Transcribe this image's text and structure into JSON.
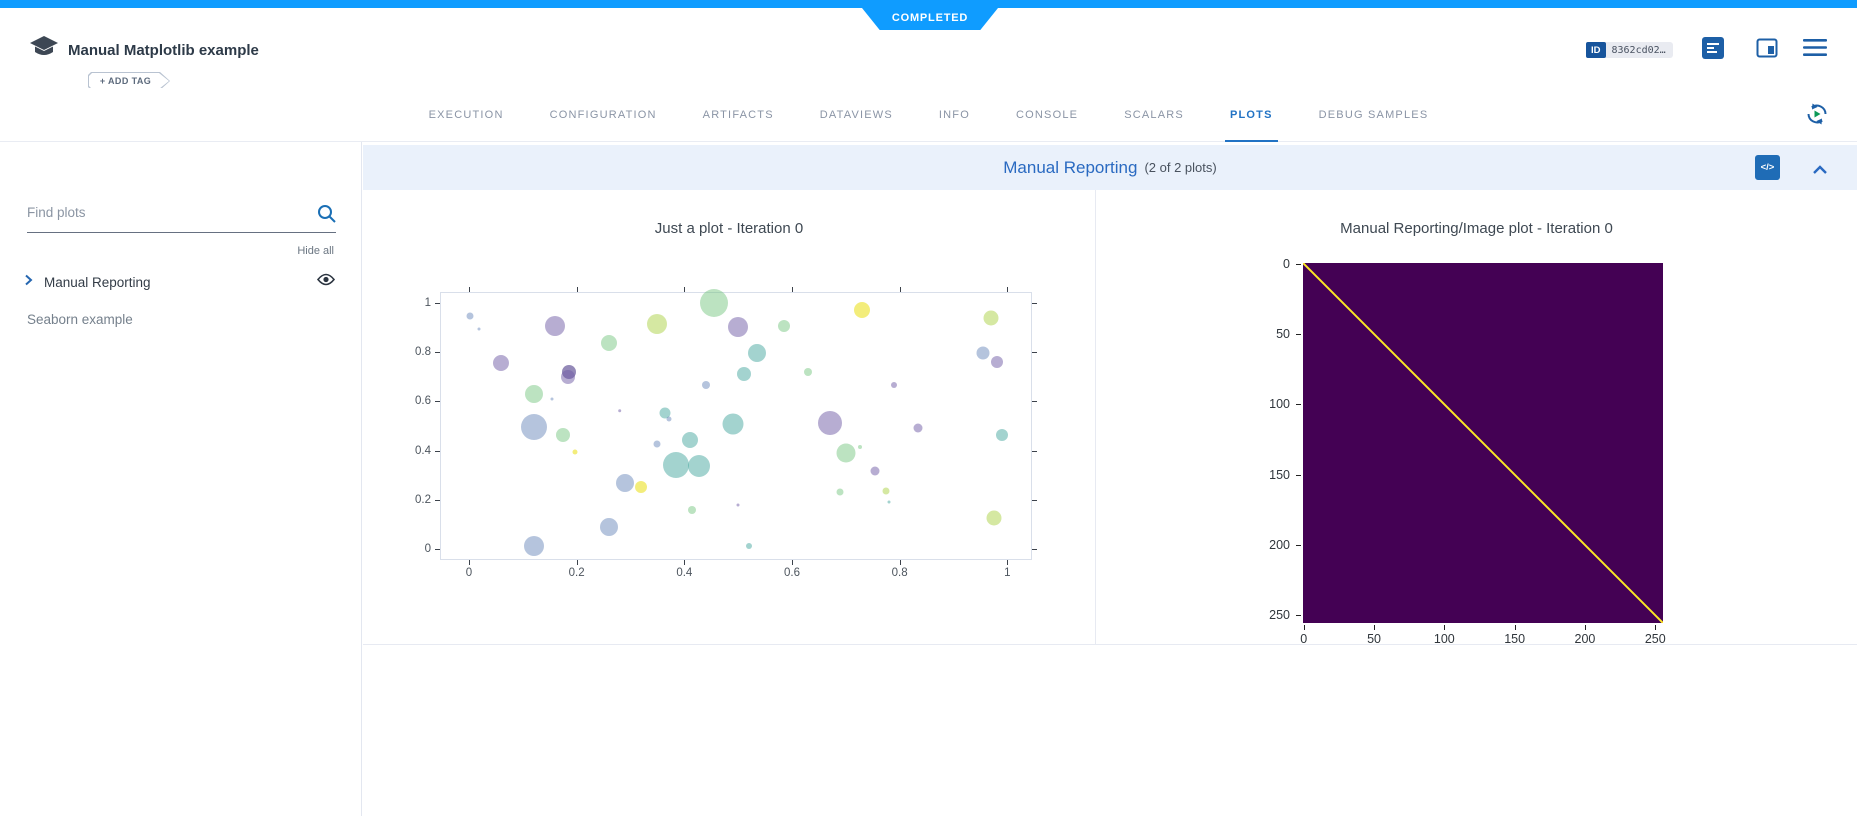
{
  "header": {
    "status": "COMPLETED",
    "title": "Manual Matplotlib example",
    "add_tag": "+ ADD TAG",
    "id_label": "ID",
    "id_value": "8362cd02…",
    "icons": [
      "experiment-type-icon",
      "comment-icon",
      "side-panel-icon",
      "hamburger-menu-icon"
    ]
  },
  "tabs": {
    "items": [
      "EXECUTION",
      "CONFIGURATION",
      "ARTIFACTS",
      "DATAVIEWS",
      "INFO",
      "CONSOLE",
      "SCALARS",
      "PLOTS",
      "DEBUG SAMPLES"
    ],
    "active": "PLOTS"
  },
  "sidebar": {
    "search_placeholder": "Find plots",
    "hide_all": "Hide all",
    "items": [
      {
        "label": "Manual Reporting",
        "expandable": true,
        "visible": true
      },
      {
        "label": "Seaborn example",
        "expandable": false,
        "visible": false
      }
    ]
  },
  "section": {
    "title": "Manual Reporting",
    "count": "(2 of 2 plots)",
    "code_button": "</>"
  },
  "colors": {
    "top_bar": "#0f9cff",
    "status_badge": "#0f9cff",
    "active_tab": "#2273c4",
    "icon_blue": "#1d5fa6",
    "section_bar_bg": "#eaf1fb",
    "section_title": "#2a6ac1"
  },
  "chart_data": [
    {
      "type": "scatter",
      "title": "Just a plot - Iteration 0",
      "xlabel": "",
      "ylabel": "",
      "xlim": [
        -0.052,
        1.044
      ],
      "ylim": [
        -0.04,
        1.04
      ],
      "x_ticks": [
        0,
        0.2,
        0.4,
        0.6,
        0.8,
        1
      ],
      "y_ticks": [
        0,
        0.2,
        0.4,
        0.6,
        0.8,
        1
      ],
      "grid": false,
      "legend": "none",
      "palette": [
        "rgba(91,125,180,0.45)",
        "rgba(112,92,166,0.5)",
        "rgba(82,64,140,0.62)",
        "rgba(52,157,149,0.45)",
        "rgba(106,192,118,0.45)",
        "rgba(178,214,86,0.55)",
        "rgba(240,232,90,0.8)"
      ],
      "points": [
        [
          0.002,
          0.945,
          3.5,
          0
        ],
        [
          0.018,
          0.895,
          1.5,
          0
        ],
        [
          0.06,
          0.755,
          8,
          1
        ],
        [
          0.16,
          0.905,
          10,
          1
        ],
        [
          0.12,
          0.63,
          9,
          4
        ],
        [
          0.185,
          0.72,
          7,
          2
        ],
        [
          0.183,
          0.697,
          7,
          1
        ],
        [
          0.155,
          0.61,
          1.5,
          0
        ],
        [
          0.12,
          0.497,
          13,
          0
        ],
        [
          0.175,
          0.465,
          7,
          4
        ],
        [
          0.197,
          0.393,
          2.5,
          6
        ],
        [
          0.26,
          0.838,
          8,
          4
        ],
        [
          0.28,
          0.562,
          1.8,
          1
        ],
        [
          0.35,
          0.915,
          10,
          5
        ],
        [
          0.365,
          0.553,
          5.5,
          3
        ],
        [
          0.372,
          0.527,
          2.5,
          0
        ],
        [
          0.35,
          0.428,
          3.5,
          0
        ],
        [
          0.41,
          0.445,
          8,
          3
        ],
        [
          0.385,
          0.343,
          13,
          3
        ],
        [
          0.427,
          0.338,
          11,
          3
        ],
        [
          0.29,
          0.268,
          9,
          0
        ],
        [
          0.32,
          0.253,
          6,
          6
        ],
        [
          0.26,
          0.088,
          9,
          0
        ],
        [
          0.12,
          0.013,
          10,
          0
        ],
        [
          0.455,
          0.998,
          14,
          4
        ],
        [
          0.5,
          0.903,
          10,
          1
        ],
        [
          0.44,
          0.668,
          4,
          0
        ],
        [
          0.51,
          0.71,
          7,
          3
        ],
        [
          0.535,
          0.795,
          9,
          3
        ],
        [
          0.585,
          0.908,
          6,
          4
        ],
        [
          0.63,
          0.72,
          4,
          4
        ],
        [
          0.415,
          0.158,
          4,
          4
        ],
        [
          0.5,
          0.178,
          1.5,
          1
        ],
        [
          0.52,
          0.013,
          3,
          3
        ],
        [
          0.49,
          0.508,
          10.5,
          3
        ],
        [
          0.67,
          0.513,
          12,
          1
        ],
        [
          0.7,
          0.39,
          9.5,
          4
        ],
        [
          0.727,
          0.415,
          2,
          4
        ],
        [
          0.69,
          0.233,
          3.5,
          4
        ],
        [
          0.73,
          0.972,
          8,
          6
        ],
        [
          0.79,
          0.665,
          3,
          1
        ],
        [
          0.755,
          0.318,
          4.5,
          1
        ],
        [
          0.775,
          0.235,
          3.5,
          5
        ],
        [
          0.78,
          0.19,
          1.5,
          3
        ],
        [
          0.835,
          0.49,
          4.5,
          1
        ],
        [
          0.955,
          0.795,
          6.5,
          0
        ],
        [
          0.98,
          0.758,
          6,
          1
        ],
        [
          0.97,
          0.938,
          7.5,
          5
        ],
        [
          0.99,
          0.465,
          6,
          3
        ],
        [
          0.975,
          0.125,
          7.5,
          5
        ]
      ]
    },
    {
      "type": "heatmap",
      "title": "Manual Reporting/Image plot - Iteration 0",
      "x_ticks": [
        0,
        50,
        100,
        150,
        200,
        250
      ],
      "y_ticks": [
        0,
        50,
        100,
        150,
        200,
        250
      ],
      "extent": [
        0,
        256
      ],
      "background_color": "#440154",
      "diagonal_color": "#fde725",
      "description": "uniform dark viridis field with yellow main diagonal from (0,0) top-left to (255,255) bottom-right"
    }
  ]
}
